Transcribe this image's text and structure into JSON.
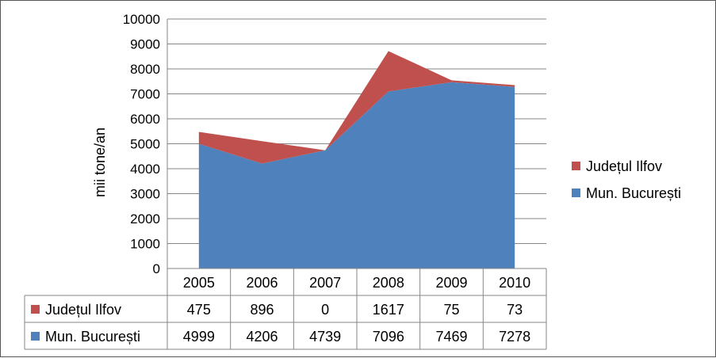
{
  "chart_data": {
    "type": "area",
    "stacked": true,
    "categories": [
      "2005",
      "2006",
      "2007",
      "2008",
      "2009",
      "2010"
    ],
    "series": [
      {
        "name": "Mun. București",
        "values": [
          4999,
          4206,
          4739,
          7096,
          7469,
          7278
        ],
        "color": "#4F81BD",
        "table_values": [
          "4999",
          "4206",
          "4739",
          "7096",
          "7469",
          "7278"
        ]
      },
      {
        "name": "Județul Ilfov",
        "values": [
          475,
          896,
          0,
          1617,
          75,
          73
        ],
        "color": "#C0504D",
        "table_values": [
          "475",
          "896",
          "0",
          "1617",
          "75",
          "73"
        ]
      }
    ],
    "table_row_order": [
      1,
      0
    ],
    "legend_order": [
      1,
      0
    ],
    "ylabel": "mii tone/an",
    "ylim": [
      0,
      10000
    ],
    "yticks": [
      0,
      1000,
      2000,
      3000,
      4000,
      5000,
      6000,
      7000,
      8000,
      9000,
      10000
    ],
    "ytick_labels": [
      "0",
      "1000",
      "2000",
      "3000",
      "4000",
      "5000",
      "6000",
      "7000",
      "8000",
      "9000",
      "10000"
    ],
    "grid": true,
    "legend_position": "right",
    "data_table": true
  }
}
